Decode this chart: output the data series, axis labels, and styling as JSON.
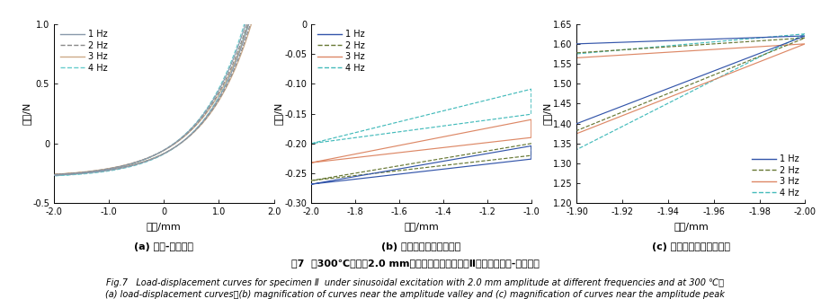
{
  "subplot_a": {
    "title": "(a) 载荷-位移曲线",
    "xlabel": "位移/mm",
    "ylabel": "载荷/N",
    "xlim": [
      -2.0,
      2.0
    ],
    "ylim": [
      -0.5,
      1.0
    ],
    "xticks": [
      -2.0,
      -1.0,
      0.0,
      1.0,
      2.0
    ],
    "yticks": [
      -0.5,
      0.0,
      0.5,
      1.0
    ],
    "xticklabels": [
      "-2.0",
      "-1.0",
      "0",
      "1.0",
      "2.0"
    ],
    "yticklabels": [
      "-0.5",
      "0",
      "0.5",
      "1.0"
    ],
    "colors": [
      "#8899aa",
      "#888888",
      "#ccaa88",
      "#66cccc"
    ],
    "linestyles": [
      "-",
      "--",
      "-",
      "--"
    ],
    "legend_loc": "upper left"
  },
  "subplot_b": {
    "title": "(b) 振幅谷值附近曲线放大",
    "xlabel": "位移/mm",
    "ylabel": "载荷/N",
    "xlim": [
      -2.0,
      -1.0
    ],
    "ylim": [
      -0.3,
      0.0
    ],
    "xticks": [
      -2.0,
      -1.8,
      -1.6,
      -1.4,
      -1.2,
      -1.0
    ],
    "yticks": [
      -0.3,
      -0.25,
      -0.2,
      -0.15,
      -0.1,
      -0.05,
      0.0
    ],
    "xticklabels": [
      "-2.0",
      "-1.8",
      "-1.6",
      "-1.4",
      "-1.2",
      "-1.0"
    ],
    "yticklabels": [
      "-0.30",
      "-0.25",
      "-0.20",
      "-0.15",
      "-0.10",
      "-0.05",
      "0"
    ],
    "colors": [
      "#3355aa",
      "#667733",
      "#dd8866",
      "#44bbbb"
    ],
    "linestyles": [
      "-",
      "--",
      "-",
      "--"
    ],
    "legend_loc": "upper left"
  },
  "subplot_c": {
    "title": "(c) 振幅峰值附近曲线放大",
    "xlabel": "位移/mm",
    "ylabel": "载荷/N",
    "xlim": [
      -1.9,
      -2.0
    ],
    "ylim": [
      1.2,
      1.65
    ],
    "xticks": [
      -1.9,
      -1.92,
      -1.94,
      -1.96,
      -1.98,
      -2.0
    ],
    "yticks": [
      1.2,
      1.25,
      1.3,
      1.35,
      1.4,
      1.45,
      1.5,
      1.55,
      1.6,
      1.65
    ],
    "xticklabels": [
      "-1.90",
      "-1.92",
      "-1.94",
      "-1.96",
      "-1.98",
      "-2.00"
    ],
    "yticklabels": [
      "1.20",
      "1.25",
      "1.30",
      "1.35",
      "1.40",
      "1.45",
      "1.50",
      "1.55",
      "1.60",
      "1.65"
    ],
    "colors": [
      "#3355aa",
      "#667733",
      "#dd8866",
      "#44bbbb"
    ],
    "linestyles": [
      "-",
      "--",
      "-",
      "--"
    ],
    "legend_loc": "lower right"
  },
  "legend_labels": [
    "1 Hz",
    "2 Hz",
    "3 Hz",
    "4 Hz"
  ],
  "figure_title": "图7  在300℃，振幅2.0 mm，不同频率激励作用下Ⅱ类试样的载荷-位移曲线",
  "fig_caption_en1": "Fig.7   Load-displacement curves for specimen Ⅱ  under sinusoidal excitation with 2.0 mm amplitude at different frequencies and at 300 ℃：",
  "fig_caption_en2": "(a) load-displacement curves；(b) magnification of curves near the amplitude valley and (c) magnification of curves near the amplitude peak"
}
